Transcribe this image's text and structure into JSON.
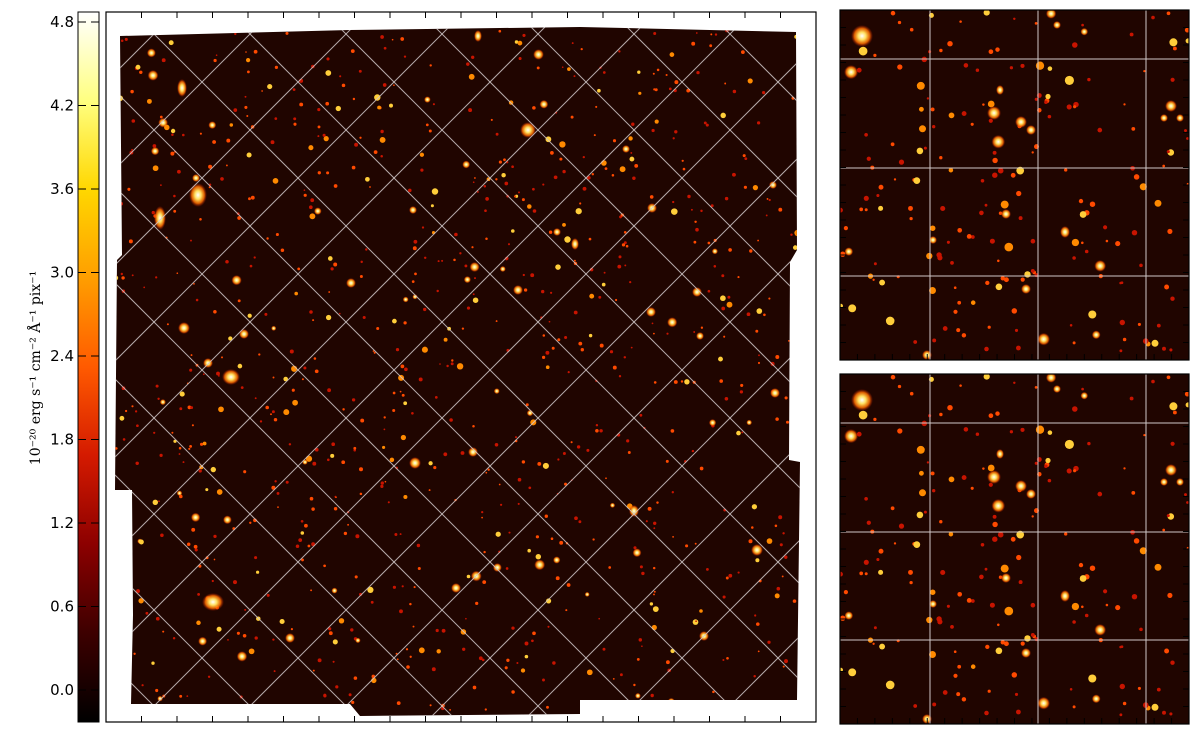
{
  "colorbar": {
    "label": "10⁻²⁰ erg s⁻¹ cm⁻² Å⁻¹ pix⁻¹",
    "ticks": [
      {
        "label": "4.8",
        "value": 4.8
      },
      {
        "label": "4.2",
        "value": 4.2
      },
      {
        "label": "3.6",
        "value": 3.6
      },
      {
        "label": "3.0",
        "value": 3.0
      },
      {
        "label": "2.4",
        "value": 2.4
      },
      {
        "label": "1.8",
        "value": 1.8
      },
      {
        "label": "1.2",
        "value": 1.2
      },
      {
        "label": "0.6",
        "value": 0.6
      },
      {
        "label": "0.0",
        "value": 0.0
      }
    ],
    "gradient_colors": [
      "#ffffff",
      "#ffff80",
      "#ffd700",
      "#ff9e00",
      "#ff5a00",
      "#d41a00",
      "#8c0000",
      "#3d0000",
      "#000000"
    ]
  },
  "panels": {
    "main": {
      "background": "#200500",
      "grid_color": "#d0c8c8"
    },
    "inset_top": {
      "background": "#200500",
      "grid_color": "#d0c8c8"
    },
    "inset_bottom": {
      "background": "#200500",
      "grid_color": "#d0c8c8"
    }
  },
  "source_palette": [
    "#ffffff",
    "#fff3a0",
    "#ffce3a",
    "#ff8a00",
    "#ff4a00",
    "#c81400"
  ]
}
